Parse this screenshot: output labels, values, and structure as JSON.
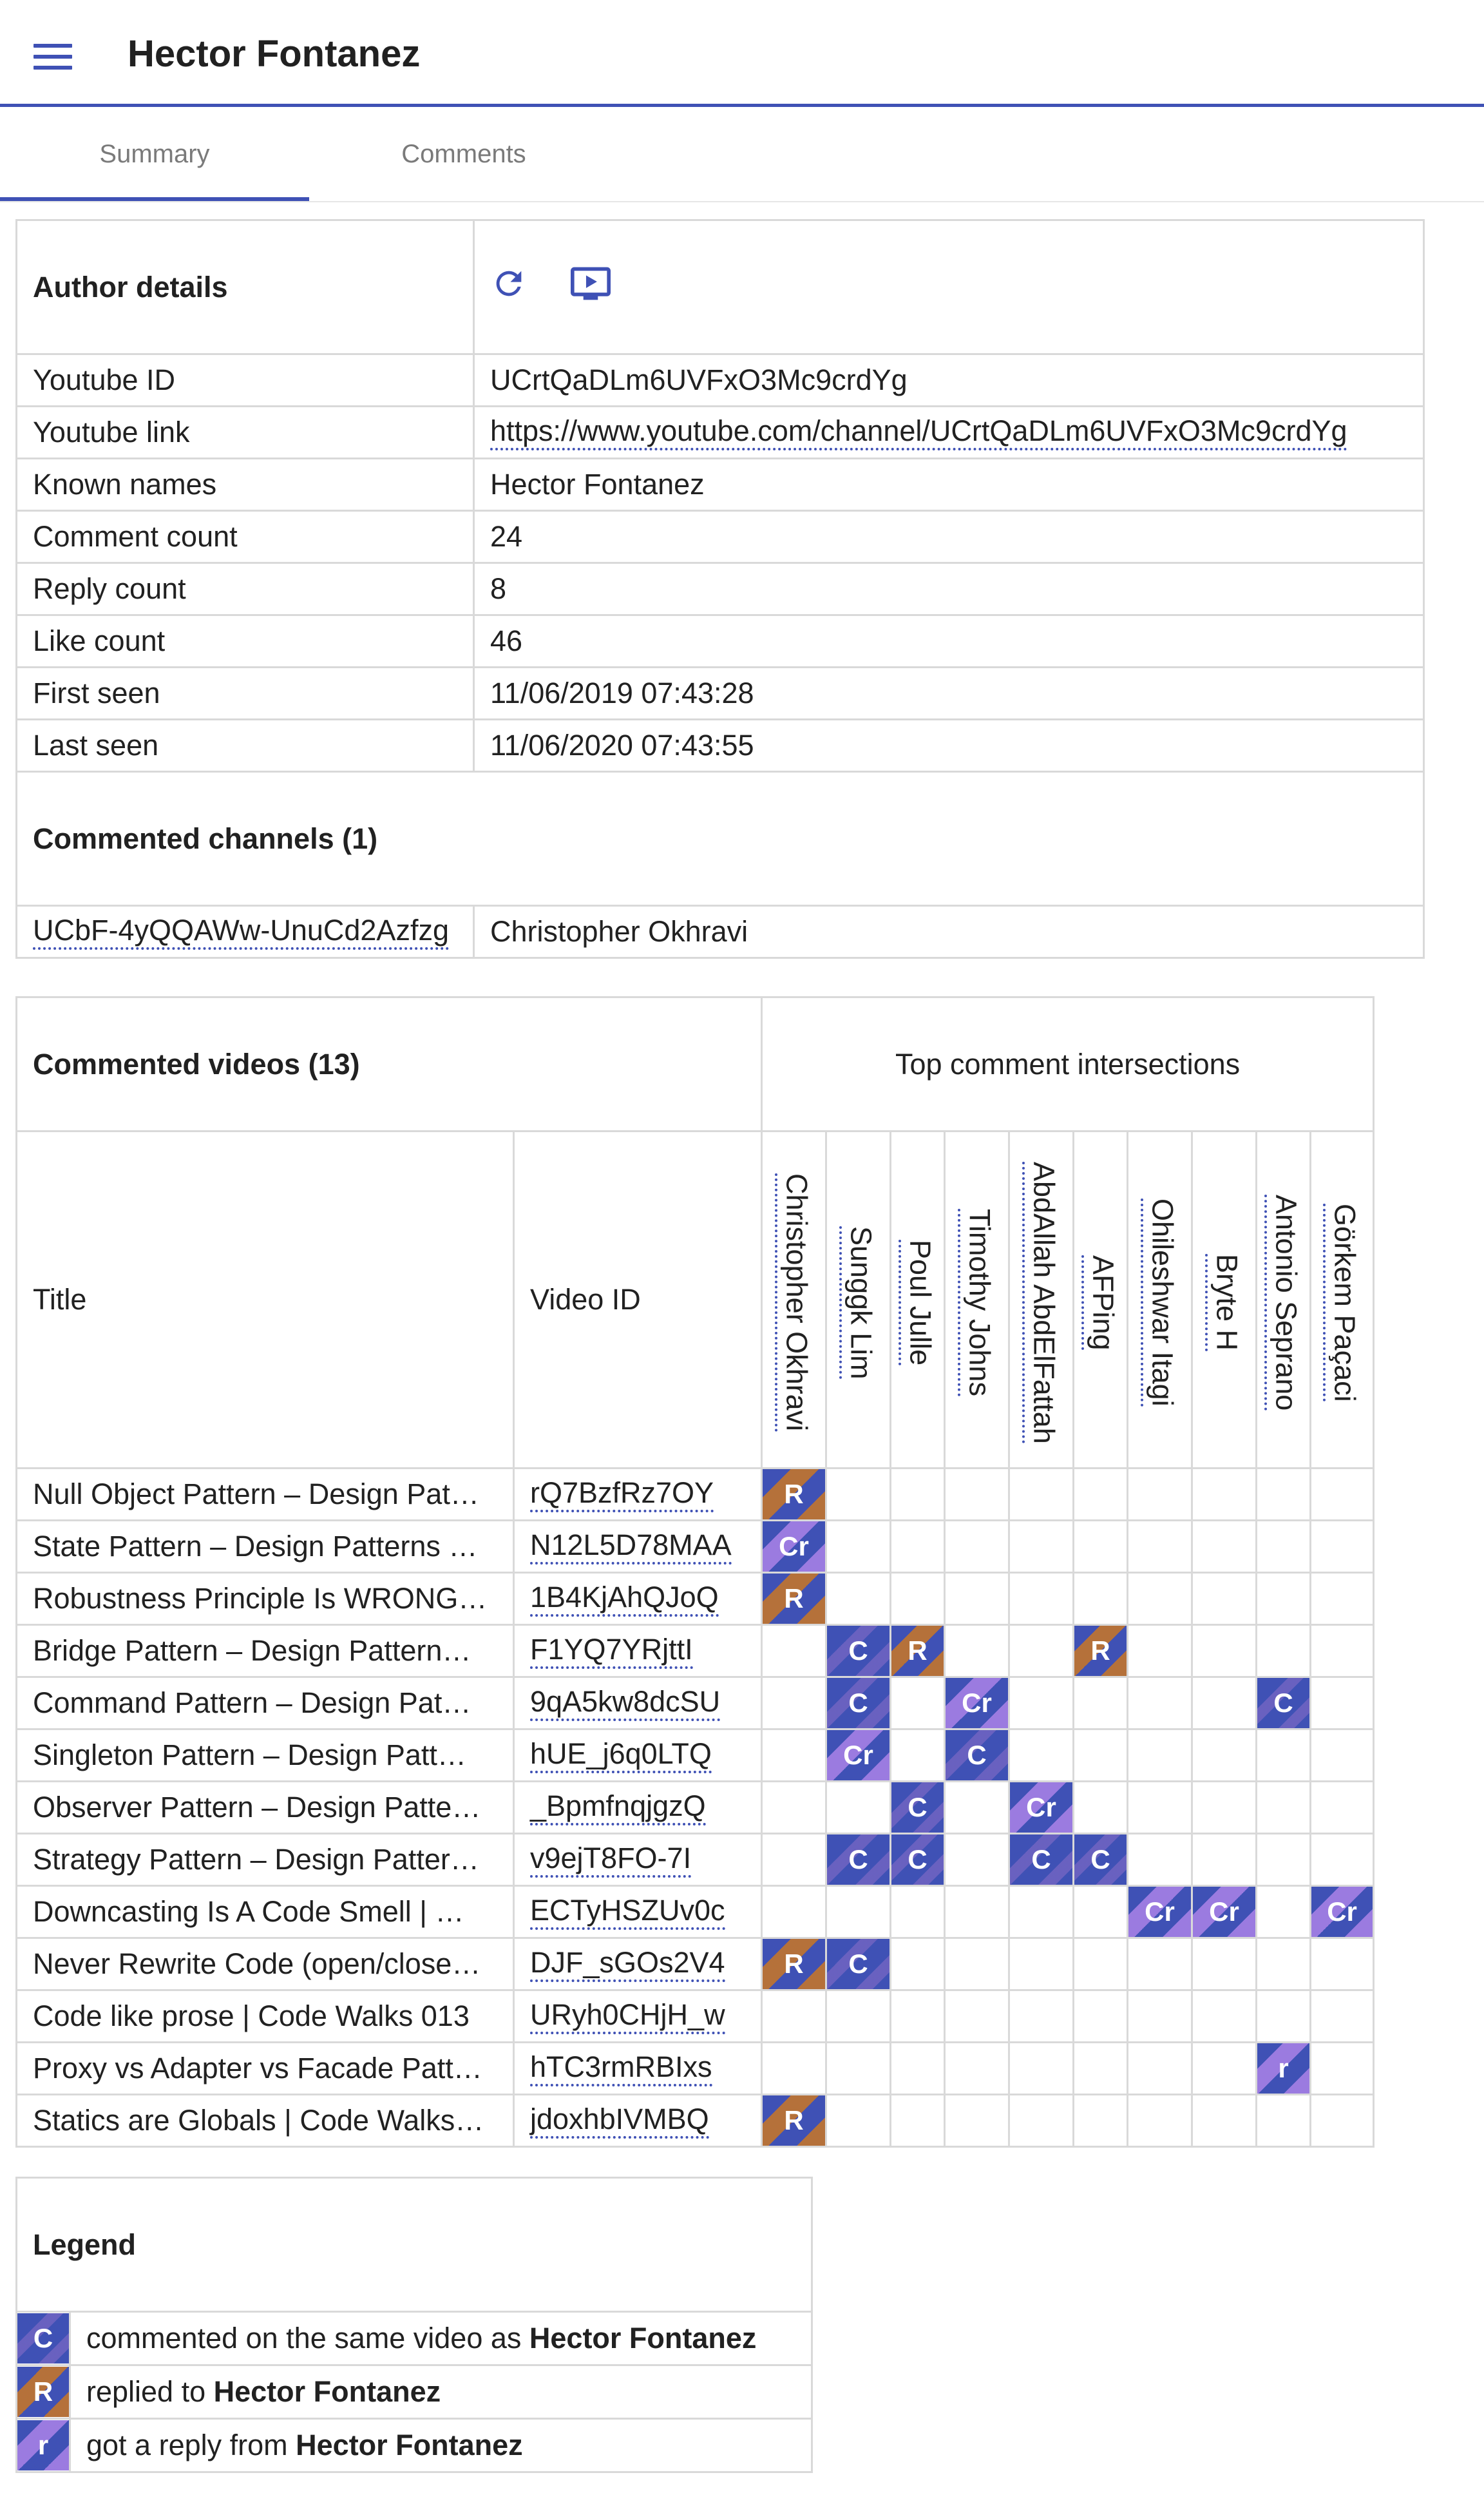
{
  "app": {
    "title": "Hector Fontanez"
  },
  "tabs": [
    {
      "label": "Summary"
    },
    {
      "label": "Comments"
    }
  ],
  "author": {
    "heading": "Author details",
    "rows": [
      {
        "label": "Youtube ID",
        "value": "UCrtQaDLm6UVFxO3Mc9crdYg"
      },
      {
        "label": "Youtube link",
        "value": "https://www.youtube.com/channel/UCrtQaDLm6UVFxO3Mc9crdYg"
      },
      {
        "label": "Known names",
        "value": "Hector Fontanez"
      },
      {
        "label": "Comment count",
        "value": "24"
      },
      {
        "label": "Reply count",
        "value": "8"
      },
      {
        "label": "Like count",
        "value": "46"
      },
      {
        "label": "First seen",
        "value": "11/06/2019 07:43:28"
      },
      {
        "label": "Last seen",
        "value": "11/06/2020 07:43:55"
      }
    ],
    "channels_heading": "Commented channels (1)",
    "channels": [
      {
        "id": "UCbF-4yQQAWw-UnuCd2Azfzg",
        "name": "Christopher Okhravi"
      }
    ]
  },
  "videos": {
    "heading": "Commented videos (13)",
    "intersections_heading": "Top comment intersections",
    "col_title": "Title",
    "col_video_id": "Video ID",
    "users": [
      "Christopher Okhravi",
      "Sunggk Lim",
      "Poul Julle",
      "Timothy Johns",
      "AbdAllah AbdElFattah",
      "AFPing",
      "Ohileshwar Itagi",
      "Bryte H",
      "Antonio Seprano",
      "Görkem Paçaci"
    ],
    "rows": [
      {
        "title": "Null Object Pattern – Design Pat…",
        "id": "rQ7BzfRz7OY",
        "marks": [
          "R",
          "",
          "",
          "",
          "",
          "",
          "",
          "",
          "",
          ""
        ]
      },
      {
        "title": "State Pattern – Design Patterns …",
        "id": "N12L5D78MAA",
        "marks": [
          "Cr",
          "",
          "",
          "",
          "",
          "",
          "",
          "",
          "",
          ""
        ]
      },
      {
        "title": "Robustness Principle Is WRONG…",
        "id": "1B4KjAhQJoQ",
        "marks": [
          "R",
          "",
          "",
          "",
          "",
          "",
          "",
          "",
          "",
          ""
        ]
      },
      {
        "title": "Bridge Pattern – Design Pattern…",
        "id": "F1YQ7YRjttI",
        "marks": [
          "",
          "C",
          "R",
          "",
          "",
          "R",
          "",
          "",
          "",
          ""
        ]
      },
      {
        "title": "Command Pattern – Design Pat…",
        "id": "9qA5kw8dcSU",
        "marks": [
          "",
          "C",
          "",
          "Cr",
          "",
          "",
          "",
          "",
          "C",
          ""
        ]
      },
      {
        "title": "Singleton Pattern – Design Patt…",
        "id": "hUE_j6q0LTQ",
        "marks": [
          "",
          "Cr",
          "",
          "C",
          "",
          "",
          "",
          "",
          "",
          ""
        ]
      },
      {
        "title": "Observer Pattern – Design Patte…",
        "id": "_BpmfnqjgzQ",
        "marks": [
          "",
          "",
          "C",
          "",
          "Cr",
          "",
          "",
          "",
          "",
          ""
        ]
      },
      {
        "title": "Strategy Pattern – Design Patter…",
        "id": "v9ejT8FO-7I",
        "marks": [
          "",
          "C",
          "C",
          "",
          "C",
          "C",
          "",
          "",
          "",
          ""
        ]
      },
      {
        "title": "Downcasting Is A Code Smell | …",
        "id": "ECTyHSZUv0c",
        "marks": [
          "",
          "",
          "",
          "",
          "",
          "",
          "Cr",
          "Cr",
          "",
          "Cr"
        ]
      },
      {
        "title": "Never Rewrite Code (open/close…",
        "id": "DJF_sGOs2V4",
        "marks": [
          "R",
          "C",
          "",
          "",
          "",
          "",
          "",
          "",
          "",
          ""
        ]
      },
      {
        "title": "Code like prose | Code Walks 013",
        "id": "URyh0CHjH_w",
        "marks": [
          "",
          "",
          "",
          "",
          "",
          "",
          "",
          "",
          "",
          ""
        ]
      },
      {
        "title": "Proxy vs Adapter vs Facade Patt…",
        "id": "hTC3rmRBIxs",
        "marks": [
          "",
          "",
          "",
          "",
          "",
          "",
          "",
          "",
          "r",
          ""
        ]
      },
      {
        "title": "Statics are Globals | Code Walks…",
        "id": "jdoxhbIVMBQ",
        "marks": [
          "R",
          "",
          "",
          "",
          "",
          "",
          "",
          "",
          "",
          ""
        ]
      }
    ]
  },
  "legend": {
    "heading": "Legend",
    "items": [
      {
        "symbol": "C",
        "text": "commented on the same video as ",
        "who": "Hector Fontanez"
      },
      {
        "symbol": "R",
        "text": "replied to ",
        "who": "Hector Fontanez"
      },
      {
        "symbol": "r",
        "text": "got a reply from ",
        "who": "Hector Fontanez"
      }
    ]
  },
  "colors": {
    "accent": "#3f51b5",
    "reply_to": "#b5713a",
    "reply_from": "#9b7be0"
  },
  "icons": [
    "menu-icon",
    "refresh-icon",
    "play-screen-icon"
  ]
}
